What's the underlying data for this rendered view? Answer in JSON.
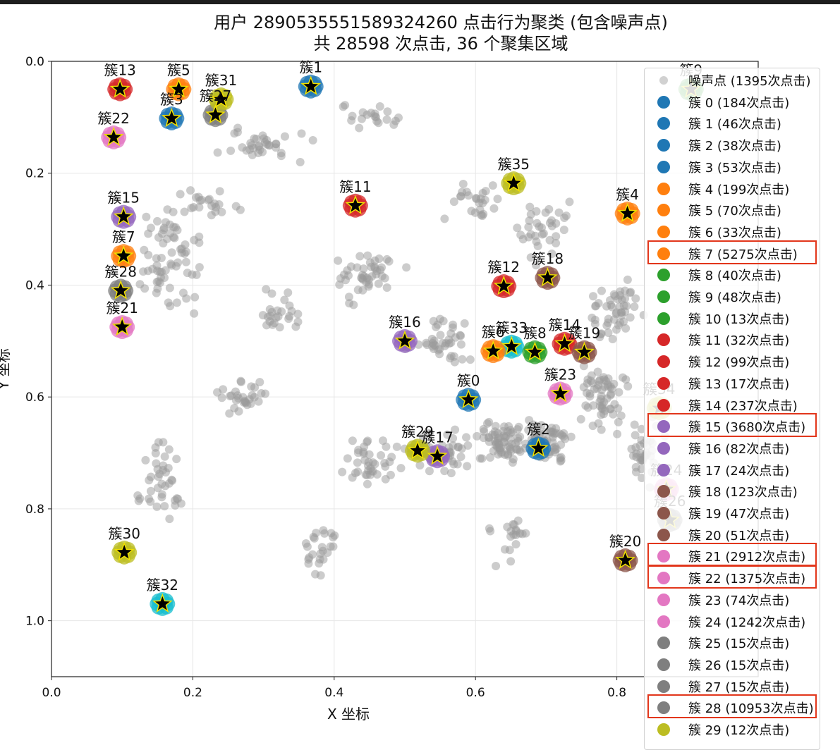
{
  "window": {
    "title_line1": "用户 2890535551589324260 点击行为聚类 (包含噪声点)",
    "title_line2": "共 28598 次点击, 36 个聚集区域"
  },
  "colors": {
    "noise": "#9a9a9a",
    "blue": "#1f77b4",
    "orange": "#ff7f0e",
    "green": "#2ca02c",
    "red": "#d62728",
    "purple": "#9467bd",
    "brown": "#8c564b",
    "pink": "#e377c2",
    "gray": "#7f7f7f",
    "olive": "#bcbd22",
    "cyan": "#17becf",
    "highlight": "#e2361b"
  },
  "chart_data": {
    "type": "scatter",
    "title": "用户 2890535551589324260 点击行为聚类 (包含噪声点)",
    "subtitle": "共 28598 次点击, 36 个聚集区域",
    "xlabel": "X 坐标",
    "ylabel": "Y 坐标",
    "xlim": [
      0.0,
      1.0
    ],
    "ylim": [
      1.1,
      0.0
    ],
    "y_inverted": true,
    "grid": true,
    "x_ticks": [
      "0.0",
      "0.2",
      "0.4",
      "0.6",
      "0.8"
    ],
    "y_ticks": [
      "0.0",
      "0.2",
      "0.4",
      "0.6",
      "0.8",
      "1.0"
    ],
    "legend_position": "upper-right",
    "legend": [
      {
        "label": "噪声点 (1395次点击)",
        "color": "noise",
        "highlighted": false
      },
      {
        "label": "簇 0 (184次点击)",
        "color": "blue",
        "highlighted": false
      },
      {
        "label": "簇 1 (46次点击)",
        "color": "blue",
        "highlighted": false
      },
      {
        "label": "簇 2 (38次点击)",
        "color": "blue",
        "highlighted": false
      },
      {
        "label": "簇 3 (53次点击)",
        "color": "blue",
        "highlighted": false
      },
      {
        "label": "簇 4 (199次点击)",
        "color": "orange",
        "highlighted": false
      },
      {
        "label": "簇 5 (70次点击)",
        "color": "orange",
        "highlighted": false
      },
      {
        "label": "簇 6 (33次点击)",
        "color": "orange",
        "highlighted": false
      },
      {
        "label": "簇 7 (5275次点击)",
        "color": "orange",
        "highlighted": true
      },
      {
        "label": "簇 8 (40次点击)",
        "color": "green",
        "highlighted": false
      },
      {
        "label": "簇 9 (48次点击)",
        "color": "green",
        "highlighted": false
      },
      {
        "label": "簇 10 (13次点击)",
        "color": "green",
        "highlighted": false
      },
      {
        "label": "簇 11 (32次点击)",
        "color": "red",
        "highlighted": false
      },
      {
        "label": "簇 12 (99次点击)",
        "color": "red",
        "highlighted": false
      },
      {
        "label": "簇 13 (17次点击)",
        "color": "red",
        "highlighted": false
      },
      {
        "label": "簇 14 (237次点击)",
        "color": "red",
        "highlighted": false
      },
      {
        "label": "簇 15 (3680次点击)",
        "color": "purple",
        "highlighted": true
      },
      {
        "label": "簇 16 (82次点击)",
        "color": "purple",
        "highlighted": false
      },
      {
        "label": "簇 17 (24次点击)",
        "color": "purple",
        "highlighted": false
      },
      {
        "label": "簇 18 (123次点击)",
        "color": "brown",
        "highlighted": false
      },
      {
        "label": "簇 19 (47次点击)",
        "color": "brown",
        "highlighted": false
      },
      {
        "label": "簇 20 (51次点击)",
        "color": "brown",
        "highlighted": false
      },
      {
        "label": "簇 21 (2912次点击)",
        "color": "pink",
        "highlighted": true
      },
      {
        "label": "簇 22 (1375次点击)",
        "color": "pink",
        "highlighted": true
      },
      {
        "label": "簇 23 (74次点击)",
        "color": "pink",
        "highlighted": false
      },
      {
        "label": "簇 24 (1242次点击)",
        "color": "pink",
        "highlighted": false
      },
      {
        "label": "簇 25 (15次点击)",
        "color": "gray",
        "highlighted": false
      },
      {
        "label": "簇 26 (15次点击)",
        "color": "gray",
        "highlighted": false
      },
      {
        "label": "簇 27 (15次点击)",
        "color": "gray",
        "highlighted": false
      },
      {
        "label": "簇 28 (10953次点击)",
        "color": "gray",
        "highlighted": true
      },
      {
        "label": "簇 29 (12次点击)",
        "color": "olive",
        "highlighted": false
      }
    ],
    "clusters": [
      {
        "name": "簇0",
        "x": 0.59,
        "y": 0.605,
        "color": "blue"
      },
      {
        "name": "簇1",
        "x": 0.367,
        "y": 0.045,
        "color": "blue"
      },
      {
        "name": "簇2",
        "x": 0.689,
        "y": 0.692,
        "color": "blue"
      },
      {
        "name": "簇33",
        "x": 0.651,
        "y": 0.51,
        "color": "cyan"
      },
      {
        "name": "簇4",
        "x": 0.815,
        "y": 0.272,
        "color": "orange"
      },
      {
        "name": "簇5",
        "x": 0.18,
        "y": 0.05,
        "color": "orange"
      },
      {
        "name": "簇6",
        "x": 0.625,
        "y": 0.518,
        "color": "orange"
      },
      {
        "name": "簇7",
        "x": 0.102,
        "y": 0.348,
        "color": "orange"
      },
      {
        "name": "簇8",
        "x": 0.684,
        "y": 0.52,
        "color": "green"
      },
      {
        "name": "簇9",
        "x": 0.905,
        "y": 0.05,
        "color": "green"
      },
      {
        "name": "簇11",
        "x": 0.43,
        "y": 0.258,
        "color": "red"
      },
      {
        "name": "簇12",
        "x": 0.64,
        "y": 0.402,
        "color": "red"
      },
      {
        "name": "簇13",
        "x": 0.097,
        "y": 0.05,
        "color": "red"
      },
      {
        "name": "簇14",
        "x": 0.726,
        "y": 0.505,
        "color": "red"
      },
      {
        "name": "簇15",
        "x": 0.102,
        "y": 0.278,
        "color": "purple"
      },
      {
        "name": "簇16",
        "x": 0.5,
        "y": 0.5,
        "color": "purple"
      },
      {
        "name": "簇17",
        "x": 0.546,
        "y": 0.706,
        "color": "purple"
      },
      {
        "name": "簇18",
        "x": 0.702,
        "y": 0.387,
        "color": "brown"
      },
      {
        "name": "簇19",
        "x": 0.754,
        "y": 0.52,
        "color": "brown"
      },
      {
        "name": "簇20",
        "x": 0.812,
        "y": 0.892,
        "color": "brown"
      },
      {
        "name": "簇21",
        "x": 0.1,
        "y": 0.475,
        "color": "pink"
      },
      {
        "name": "簇22",
        "x": 0.088,
        "y": 0.136,
        "color": "pink"
      },
      {
        "name": "簇23",
        "x": 0.72,
        "y": 0.594,
        "color": "pink"
      },
      {
        "name": "簇28",
        "x": 0.098,
        "y": 0.41,
        "color": "gray"
      },
      {
        "name": "簇27",
        "x": 0.232,
        "y": 0.096,
        "color": "gray"
      },
      {
        "name": "簇30",
        "x": 0.103,
        "y": 0.878,
        "color": "olive"
      },
      {
        "name": "簇31",
        "x": 0.24,
        "y": 0.068,
        "color": "olive"
      },
      {
        "name": "簇29",
        "x": 0.518,
        "y": 0.696,
        "color": "olive"
      },
      {
        "name": "簇35",
        "x": 0.654,
        "y": 0.218,
        "color": "olive"
      },
      {
        "name": "簇3",
        "x": 0.17,
        "y": 0.102,
        "color": "blue"
      },
      {
        "name": "簇32",
        "x": 0.157,
        "y": 0.97,
        "color": "cyan"
      },
      {
        "name": "簇34",
        "x": 0.86,
        "y": 0.62,
        "color": "olive"
      },
      {
        "name": "簇24",
        "x": 0.87,
        "y": 0.765,
        "color": "pink"
      },
      {
        "name": "簇26",
        "x": 0.875,
        "y": 0.82,
        "color": "gray"
      }
    ]
  }
}
